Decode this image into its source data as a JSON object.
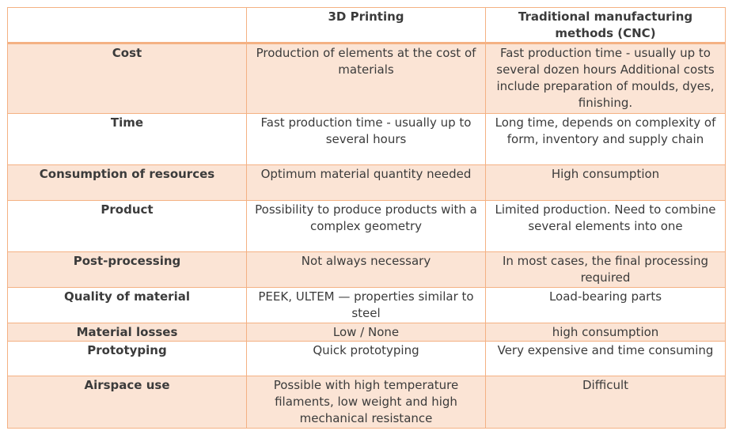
{
  "table": {
    "header": [
      "",
      "3D Printing",
      "Traditional manufacturing methods (CNC)"
    ],
    "rows": [
      [
        "Cost",
        "Production of elements at the cost of materials",
        "Fast production time - usually up to several dozen hours Additional costs include preparation of moulds, dyes, finishing."
      ],
      [
        "Time",
        "Fast production time - usually up to several hours",
        "Long time, depends on complexity of form, inventory and supply chain"
      ],
      [
        "Consumption of resources",
        "Optimum material quantity needed",
        "High consumption"
      ],
      [
        "Product",
        "Possibility to produce products with a complex geometry",
        "Limited production. Need to combine several elements into one"
      ],
      [
        "Post-processing",
        "Not always necessary",
        "In most cases, the final processing required"
      ],
      [
        "Quality of material",
        "PEEK, ULTEM — properties similar to steel",
        "Load-bearing parts"
      ],
      [
        "Material losses",
        "Low / None",
        "high consumption"
      ],
      [
        "Prototyping",
        "Quick prototyping",
        "Very expensive and time consuming"
      ],
      [
        "Airspace use",
        "Possible with high temperature filaments, low weight and high mechanical resistance",
        "Difficult"
      ]
    ]
  }
}
